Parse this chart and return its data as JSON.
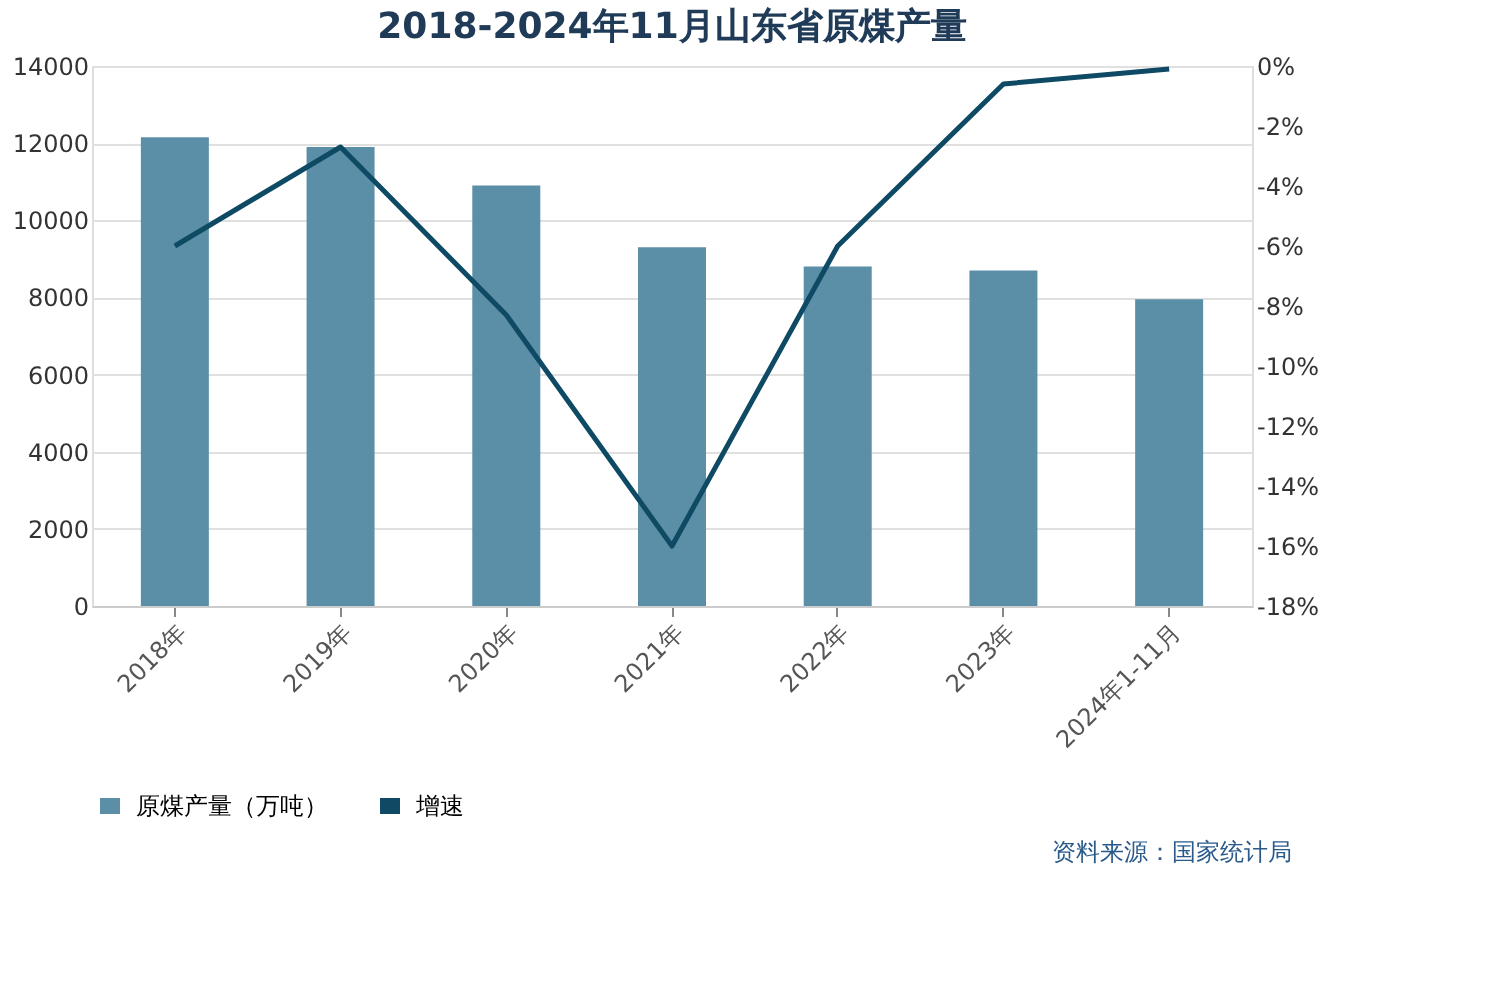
{
  "chart_data": {
    "type": "bar",
    "title": "2018-2024年11月山东省原煤产量",
    "categories": [
      "2018年",
      "2019年",
      "2020年",
      "2021年",
      "2022年",
      "2023年",
      "2024年1-11月"
    ],
    "series": [
      {
        "name": "原煤产量（万吨）",
        "color": "#5b8fa8",
        "values": [
          12150,
          11900,
          10900,
          9300,
          8800,
          8700,
          7950
        ]
      },
      {
        "name": "增速",
        "type": "line",
        "axis": "y2",
        "color": "#0e4a63",
        "values": [
          -6.0,
          -2.7,
          -8.3,
          -16.0,
          -6.0,
          -0.6,
          -0.1
        ]
      }
    ],
    "ylim": [
      0,
      14000
    ],
    "yticks": [
      0,
      2000,
      4000,
      6000,
      8000,
      10000,
      12000,
      14000
    ],
    "y2lim": [
      -18,
      0
    ],
    "y2ticks": [
      {
        "value": -18,
        "label": "-18%"
      },
      {
        "value": -16,
        "label": "-16%"
      },
      {
        "value": -14,
        "label": "-14%"
      },
      {
        "value": -12,
        "label": "-12%"
      },
      {
        "value": -10,
        "label": "-10%"
      },
      {
        "value": -8,
        "label": "-8%"
      },
      {
        "value": -6,
        "label": "-6%"
      },
      {
        "value": -4,
        "label": "-4%"
      },
      {
        "value": -2,
        "label": "-2%"
      },
      {
        "value": 0,
        "label": "0%"
      }
    ],
    "grid": "y",
    "legend": "bottom",
    "marker": "none",
    "line_style": "solid",
    "annotations": [
      "资料来源：国家统计局"
    ]
  }
}
